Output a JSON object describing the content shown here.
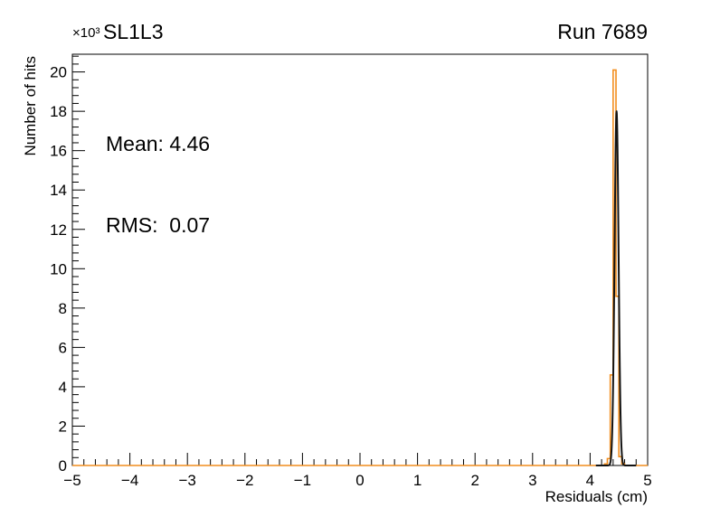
{
  "header": {
    "title": "SL1L3",
    "run": "Run 7689"
  },
  "stats": {
    "mean_text": "Mean: 4.46",
    "rms_text": "RMS:  0.07"
  },
  "axes": {
    "x": {
      "label": "Residuals (cm)"
    },
    "y": {
      "label": "Number of hits",
      "multiplier": "×10³"
    }
  },
  "colors": {
    "histogram": "#f28e1e",
    "fit": "#141414",
    "axis": "#000000",
    "background": "#ffffff"
  },
  "chart_data": {
    "type": "bar",
    "subtype": "histogram-with-gaussian-fit",
    "title": "SL1L3",
    "corner_label": "Run 7689",
    "xlabel": "Residuals (cm)",
    "ylabel": "Number of hits",
    "y_multiplier": "×10³",
    "xlim": [
      -5,
      5
    ],
    "ylim": [
      0,
      20900
    ],
    "grid": false,
    "legend": "none",
    "annotations": [
      "Mean: 4.46",
      "RMS:  0.07"
    ],
    "x_ticks": {
      "values": [
        -5,
        -4,
        -3,
        -2,
        -1,
        0,
        1,
        2,
        3,
        4,
        5
      ],
      "labels": [
        "−5",
        "−4",
        "−3",
        "−2",
        "−1",
        "0",
        "1",
        "2",
        "3",
        "4",
        "5"
      ],
      "minor_step": 0.2
    },
    "y_ticks": {
      "values": [
        0,
        2,
        4,
        6,
        8,
        10,
        12,
        14,
        16,
        18,
        20
      ],
      "labels": [
        "0",
        "2",
        "4",
        "6",
        "8",
        "10",
        "12",
        "14",
        "16",
        "18",
        "20"
      ],
      "scale": 1000,
      "minor_step": 0.4
    },
    "series": [
      {
        "name": "residuals-histogram",
        "kind": "step-histogram",
        "color": "#f28e1e",
        "bin_edges": [
          4.25,
          4.3,
          4.35,
          4.4,
          4.45,
          4.5,
          4.55,
          4.6
        ],
        "counts": [
          80,
          350,
          4600,
          20100,
          8600,
          450,
          80
        ]
      },
      {
        "name": "gaussian-fit",
        "kind": "gaussian",
        "color": "#141414",
        "mean": 4.46,
        "sigma": 0.035,
        "amplitude": 18000,
        "draw_range": [
          4.1,
          4.8
        ]
      }
    ]
  }
}
